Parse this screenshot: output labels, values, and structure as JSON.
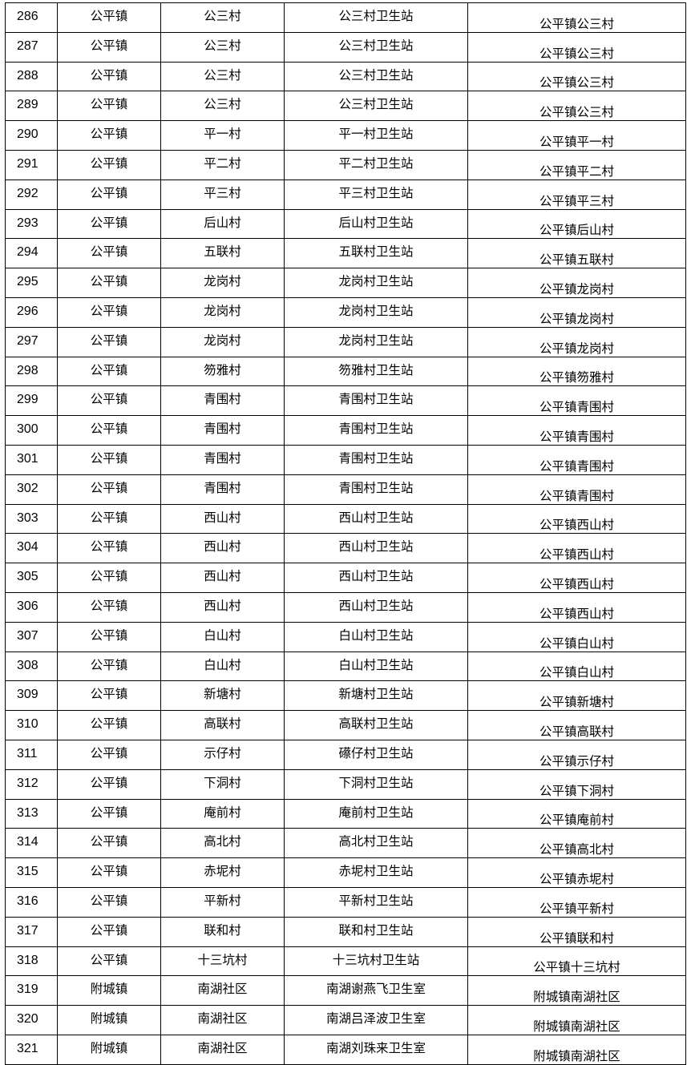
{
  "rows": [
    [
      "286",
      "公平镇",
      "公三村",
      "公三村卫生站",
      "公平镇公三村"
    ],
    [
      "287",
      "公平镇",
      "公三村",
      "公三村卫生站",
      "公平镇公三村"
    ],
    [
      "288",
      "公平镇",
      "公三村",
      "公三村卫生站",
      "公平镇公三村"
    ],
    [
      "289",
      "公平镇",
      "公三村",
      "公三村卫生站",
      "公平镇公三村"
    ],
    [
      "290",
      "公平镇",
      "平一村",
      "平一村卫生站",
      "公平镇平一村"
    ],
    [
      "291",
      "公平镇",
      "平二村",
      "平二村卫生站",
      "公平镇平二村"
    ],
    [
      "292",
      "公平镇",
      "平三村",
      "平三村卫生站",
      "公平镇平三村"
    ],
    [
      "293",
      "公平镇",
      "后山村",
      "后山村卫生站",
      "公平镇后山村"
    ],
    [
      "294",
      "公平镇",
      "五联村",
      "五联村卫生站",
      "公平镇五联村"
    ],
    [
      "295",
      "公平镇",
      "龙岗村",
      "龙岗村卫生站",
      "公平镇龙岗村"
    ],
    [
      "296",
      "公平镇",
      "龙岗村",
      "龙岗村卫生站",
      "公平镇龙岗村"
    ],
    [
      "297",
      "公平镇",
      "龙岗村",
      "龙岗村卫生站",
      "公平镇龙岗村"
    ],
    [
      "298",
      "公平镇",
      "笏雅村",
      "笏雅村卫生站",
      "公平镇笏雅村"
    ],
    [
      "299",
      "公平镇",
      "青围村",
      "青围村卫生站",
      "公平镇青围村"
    ],
    [
      "300",
      "公平镇",
      "青围村",
      "青围村卫生站",
      "公平镇青围村"
    ],
    [
      "301",
      "公平镇",
      "青围村",
      "青围村卫生站",
      "公平镇青围村"
    ],
    [
      "302",
      "公平镇",
      "青围村",
      "青围村卫生站",
      "公平镇青围村"
    ],
    [
      "303",
      "公平镇",
      "西山村",
      "西山村卫生站",
      "公平镇西山村"
    ],
    [
      "304",
      "公平镇",
      "西山村",
      "西山村卫生站",
      "公平镇西山村"
    ],
    [
      "305",
      "公平镇",
      "西山村",
      "西山村卫生站",
      "公平镇西山村"
    ],
    [
      "306",
      "公平镇",
      "西山村",
      "西山村卫生站",
      "公平镇西山村"
    ],
    [
      "307",
      "公平镇",
      "白山村",
      "白山村卫生站",
      "公平镇白山村"
    ],
    [
      "308",
      "公平镇",
      "白山村",
      "白山村卫生站",
      "公平镇白山村"
    ],
    [
      "309",
      "公平镇",
      "新塘村",
      "新塘村卫生站",
      "公平镇新塘村"
    ],
    [
      "310",
      "公平镇",
      "高联村",
      "高联村卫生站",
      "公平镇高联村"
    ],
    [
      "311",
      "公平镇",
      "示仔村",
      "礤仔村卫生站",
      "公平镇示仔村"
    ],
    [
      "312",
      "公平镇",
      "下洞村",
      "下洞村卫生站",
      "公平镇下洞村"
    ],
    [
      "313",
      "公平镇",
      "庵前村",
      "庵前村卫生站",
      "公平镇庵前村"
    ],
    [
      "314",
      "公平镇",
      "高北村",
      "高北村卫生站",
      "公平镇高北村"
    ],
    [
      "315",
      "公平镇",
      "赤坭村",
      "赤坭村卫生站",
      "公平镇赤坭村"
    ],
    [
      "316",
      "公平镇",
      "平新村",
      "平新村卫生站",
      "公平镇平新村"
    ],
    [
      "317",
      "公平镇",
      "联和村",
      "联和村卫生站",
      "公平镇联和村"
    ],
    [
      "318",
      "公平镇",
      "十三坑村",
      "十三坑村卫生站",
      "公平镇十三坑村"
    ],
    [
      "319",
      "附城镇",
      "南湖社区",
      "南湖谢燕飞卫生室",
      "附城镇南湖社区"
    ],
    [
      "320",
      "附城镇",
      "南湖社区",
      "南湖吕泽波卫生室",
      "附城镇南湖社区"
    ],
    [
      "321",
      "附城镇",
      "南湖社区",
      "南湖刘珠来卫生室",
      "附城镇南湖社区"
    ]
  ]
}
